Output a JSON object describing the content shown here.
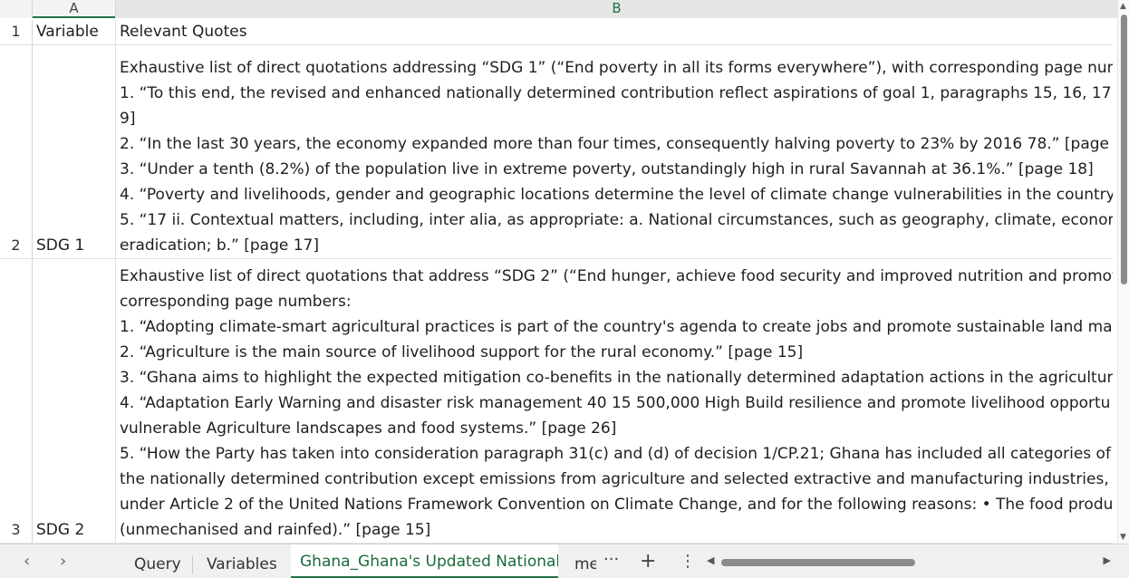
{
  "columns": {
    "a": "A",
    "b": "B"
  },
  "rows": [
    {
      "num": "1",
      "a": "Variable",
      "b_lines": [
        "Relevant Quotes"
      ]
    },
    {
      "num": "2",
      "a": "SDG 1",
      "b_lines": [
        "Exhaustive list of direct quotations addressing “SDG 1” (“End poverty in all its forms everywhere”), with corresponding page num",
        "1. “To this end, the revised and enhanced nationally determined contribution reflect aspirations of goal 1, paragraphs 15, 16, 17",
        "9]",
        "2. “In the last 30 years, the economy expanded more than four times, consequently halving poverty to 23% by 2016 78.” [page 1",
        "3. “Under a tenth (8.2%) of the population live in extreme poverty, outstandingly high in rural Savannah at 36.1%.” [page 18]",
        "4. “Poverty and livelihoods, gender and geographic locations determine the level of climate change vulnerabilities in the country.",
        "5. “17 ii. Contextual matters, including, inter alia, as appropriate: a. National circumstances, such as geography, climate, econom",
        "eradication; b.” [page 17]"
      ]
    },
    {
      "num": "3",
      "a": "SDG 2",
      "b_lines": [
        "Exhaustive list of direct quotations that address “SDG 2” (“End hunger, achieve food security and improved nutrition and promot",
        "corresponding page numbers:",
        "1. “Adopting climate-smart agricultural practices is part of the country's agenda to create jobs and promote sustainable land mar",
        "2. “Agriculture is the main source of livelihood support for the rural economy.” [page 15]",
        "3. “Ghana aims to highlight the expected mitigation co-benefits in the nationally determined adaptation actions in the agricultur",
        "4. “Adaptation Early Warning and disaster risk management 40 15 500,000 High Build resilience and promote livelihood opportu",
        "vulnerable Agriculture landscapes and food systems.” [page 26]",
        "5. “How the Party has taken into consideration paragraph 31(c) and (d) of decision 1/CP.21; Ghana has included all categories of",
        "the nationally determined contribution except emissions from agriculture and selected extractive and manufacturing industries, c",
        "under Article 2 of the United Nations Framework Convention on Climate Change, and for the following reasons: • The food produ",
        "(unmechanised and rainfed).” [page 15]"
      ]
    }
  ],
  "tabs": {
    "prev": "‹",
    "next": "›",
    "items": [
      {
        "label": "Query"
      },
      {
        "label": "Variables"
      },
      {
        "label": "Ghana_Ghana's Updated Nationall"
      },
      {
        "label": "me"
      }
    ],
    "more": "···",
    "add": "+",
    "options": "⋮"
  },
  "colors": {
    "accent": "#217346"
  }
}
